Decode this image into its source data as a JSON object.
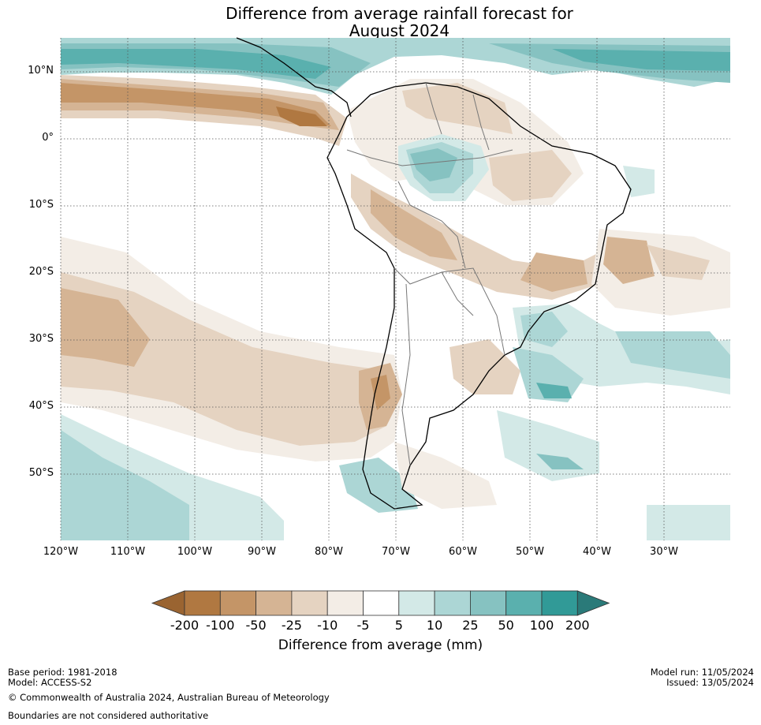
{
  "title": {
    "line1": "Difference from average rainfall forecast for",
    "line2": "August 2024"
  },
  "map": {
    "lat_labels": [
      "10°N",
      "0°",
      "10°S",
      "20°S",
      "30°S",
      "40°S",
      "50°S"
    ],
    "lon_labels": [
      "120°W",
      "110°W",
      "100°W",
      "90°W",
      "80°W",
      "70°W",
      "60°W",
      "50°W",
      "40°W",
      "30°W"
    ]
  },
  "legend": {
    "tick_labels": [
      "-200",
      "-100",
      "-50",
      "-25",
      "-10",
      "-5",
      "5",
      "10",
      "25",
      "50",
      "100",
      "200"
    ],
    "colors": [
      "#9a6431",
      "#b07841",
      "#c49567",
      "#d5b494",
      "#e5d3c1",
      "#f3ede6",
      "#ffffff",
      "#d3e9e7",
      "#acd6d5",
      "#86c2c1",
      "#5ab0ae",
      "#319a97",
      "#2a7a79"
    ],
    "label": "Difference from average (mm)"
  },
  "footer": {
    "base_period": "Base period: 1981-2018",
    "model": "Model: ACCESS-S2",
    "copyright": "© Commonwealth of Australia 2024, Australian Bureau of Meteorology",
    "boundaries": "Boundaries are not considered authoritative",
    "model_run": "Model run: 11/05/2024",
    "issued": "Issued: 13/05/2024"
  }
}
